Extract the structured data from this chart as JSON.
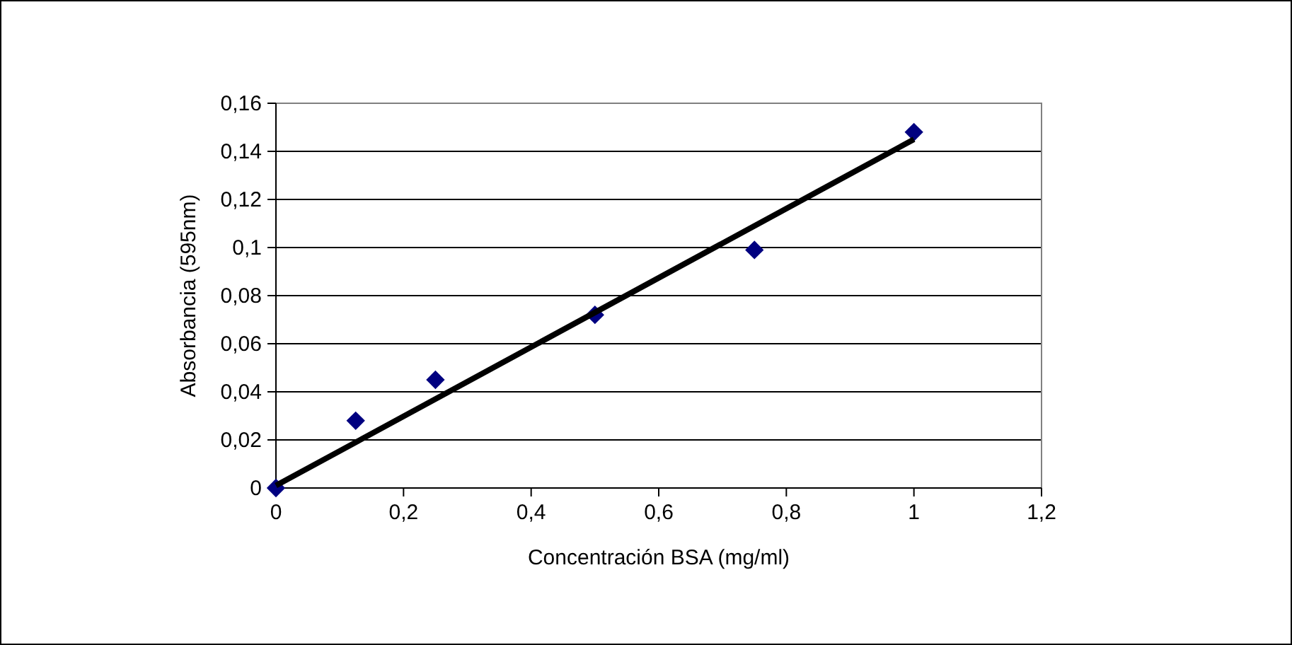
{
  "chart_data": {
    "type": "scatter",
    "xlabel": "Concentración BSA (mg/ml)",
    "ylabel": "Absorbancia (595nm)",
    "xlim": [
      0,
      1.2
    ],
    "ylim": [
      0,
      0.16
    ],
    "xticks": [
      0,
      {
        "value": 0.2,
        "label": "0,2"
      },
      {
        "value": 0.4,
        "label": "0,4"
      },
      {
        "value": 0.6,
        "label": "0,6"
      },
      {
        "value": 0.8,
        "label": "0,8"
      },
      1,
      {
        "value": 1.2,
        "label": "1,2"
      }
    ],
    "yticks": [
      0,
      {
        "value": 0.02,
        "label": "0,02"
      },
      {
        "value": 0.04,
        "label": "0,04"
      },
      {
        "value": 0.06,
        "label": "0,06"
      },
      {
        "value": 0.08,
        "label": "0,08"
      },
      {
        "value": 0.1,
        "label": "0,1"
      },
      {
        "value": 0.12,
        "label": "0,12"
      },
      {
        "value": 0.14,
        "label": "0,14"
      },
      {
        "value": 0.16,
        "label": "0,16"
      }
    ],
    "grid": "y",
    "marker": "diamond",
    "series": [
      {
        "color": "#000080",
        "x": [
          0,
          0.125,
          0.25,
          0.5,
          0.75,
          1
        ],
        "values": [
          0,
          0.028,
          0.045,
          0.072,
          0.099,
          0.148
        ]
      },
      {
        "type": "line",
        "color": "#000000",
        "marker": "none",
        "line_style": "solid",
        "x": [
          0,
          1
        ],
        "values": [
          0.001,
          0.145
        ]
      }
    ]
  }
}
